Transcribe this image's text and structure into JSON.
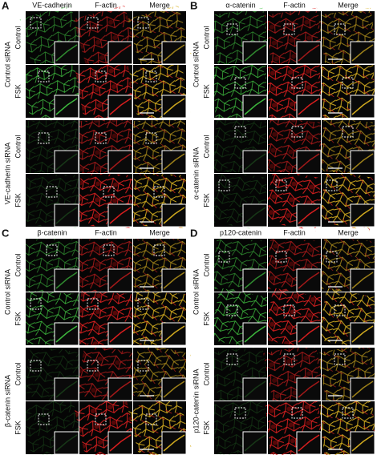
{
  "panels": [
    {
      "letter": "A",
      "columns": [
        "VE-cadherin",
        "F-actin",
        "Merge"
      ],
      "groups": [
        {
          "label": "Control siRNA",
          "rows": [
            "Control",
            "FSK"
          ]
        },
        {
          "label": "VE-cadherin siRNA",
          "rows": [
            "Control",
            "FSK"
          ]
        }
      ]
    },
    {
      "letter": "B",
      "columns": [
        "α-catenin",
        "F-actin",
        "Merge"
      ],
      "groups": [
        {
          "label": "Control siRNA",
          "rows": [
            "Control",
            "FSK"
          ]
        },
        {
          "label": "α-catenin siRNA",
          "rows": [
            "Control",
            "FSK"
          ]
        }
      ]
    },
    {
      "letter": "C",
      "columns": [
        "β-catenin",
        "F-actin",
        "Merge"
      ],
      "groups": [
        {
          "label": "Control siRNA",
          "rows": [
            "Control",
            "FSK"
          ]
        },
        {
          "label": "β-catenin siRNA",
          "rows": [
            "Control",
            "FSK"
          ]
        }
      ]
    },
    {
      "letter": "D",
      "columns": [
        "p120-catenin",
        "F-actin",
        "Merge"
      ],
      "groups": [
        {
          "label": "Control siRNA",
          "rows": [
            "Control",
            "FSK"
          ]
        },
        {
          "label": "p120-catenin siRNA",
          "rows": [
            "Control",
            "FSK"
          ]
        }
      ]
    }
  ]
}
